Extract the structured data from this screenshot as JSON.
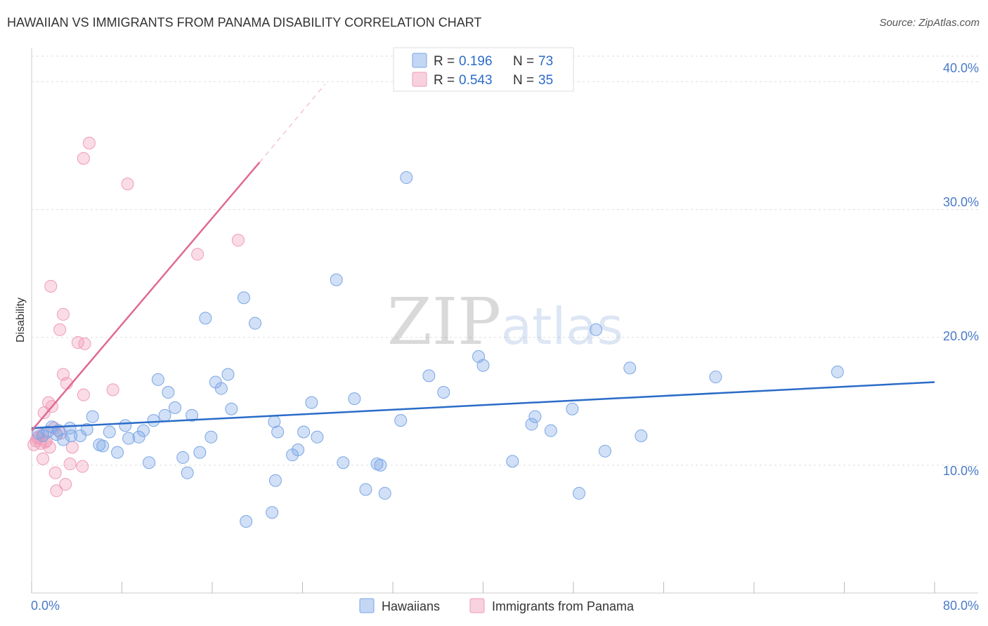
{
  "header": {
    "title": "HAWAIIAN VS IMMIGRANTS FROM PANAMA DISABILITY CORRELATION CHART",
    "source": "Source: ZipAtlas.com"
  },
  "watermark": {
    "zip": "ZIP",
    "atlas": "atlas"
  },
  "colors": {
    "hawaiians": "#7aa6e6",
    "hawaiians_line": "#2a6cc8",
    "panama": "#f09ab8",
    "panama_line": "#e06a92",
    "tick_text": "#4a7ac8",
    "grid": "#dddddd"
  },
  "legend": {
    "r_label": "R =",
    "n_label": "N =",
    "rows": [
      {
        "r": "0.196",
        "n": "73"
      },
      {
        "r": "0.543",
        "n": "35"
      }
    ]
  },
  "chart_data": {
    "type": "scatter",
    "title": "HAWAIIAN VS IMMIGRANTS FROM PANAMA DISABILITY CORRELATION CHART",
    "xlabel": "",
    "ylabel": "Disability",
    "xlim": [
      0,
      80
    ],
    "ylim": [
      0,
      42
    ],
    "x_tick_labels": [
      "0.0%",
      "80.0%"
    ],
    "y_ticks": [
      10,
      20,
      30,
      40
    ],
    "y_tick_labels": [
      "10.0%",
      "20.0%",
      "30.0%",
      "40.0%"
    ],
    "grid": true,
    "series": [
      {
        "name": "Hawaiians",
        "r": 0.196,
        "n": 73,
        "trend": {
          "x": [
            0,
            80
          ],
          "y": [
            12.9,
            16.5
          ]
        },
        "points": [
          [
            0.6,
            12.5
          ],
          [
            1.0,
            12.3
          ],
          [
            1.4,
            12.6
          ],
          [
            1.8,
            13.0
          ],
          [
            2.2,
            12.4
          ],
          [
            2.8,
            12.0
          ],
          [
            3.5,
            12.3
          ],
          [
            4.3,
            12.3
          ],
          [
            4.9,
            12.8
          ],
          [
            5.4,
            13.8
          ],
          [
            6.0,
            11.6
          ],
          [
            6.3,
            11.5
          ],
          [
            6.9,
            12.6
          ],
          [
            7.6,
            11.0
          ],
          [
            8.3,
            13.1
          ],
          [
            8.6,
            12.1
          ],
          [
            9.5,
            12.2
          ],
          [
            9.9,
            12.7
          ],
          [
            10.4,
            10.2
          ],
          [
            10.8,
            13.5
          ],
          [
            11.2,
            16.7
          ],
          [
            11.8,
            13.9
          ],
          [
            12.1,
            15.7
          ],
          [
            12.7,
            14.5
          ],
          [
            13.4,
            10.6
          ],
          [
            13.8,
            9.4
          ],
          [
            14.2,
            13.9
          ],
          [
            14.9,
            11.0
          ],
          [
            15.4,
            21.5
          ],
          [
            15.9,
            12.2
          ],
          [
            16.3,
            16.5
          ],
          [
            16.8,
            16.0
          ],
          [
            17.4,
            17.1
          ],
          [
            17.7,
            14.4
          ],
          [
            18.8,
            23.1
          ],
          [
            19.0,
            5.6
          ],
          [
            19.8,
            21.1
          ],
          [
            21.5,
            13.4
          ],
          [
            21.8,
            12.6
          ],
          [
            21.3,
            6.3
          ],
          [
            21.6,
            8.8
          ],
          [
            23.1,
            10.8
          ],
          [
            23.6,
            11.2
          ],
          [
            24.1,
            12.6
          ],
          [
            24.8,
            14.9
          ],
          [
            25.3,
            12.2
          ],
          [
            27.0,
            24.5
          ],
          [
            27.6,
            10.2
          ],
          [
            28.6,
            15.2
          ],
          [
            29.6,
            8.1
          ],
          [
            30.6,
            10.1
          ],
          [
            30.9,
            10.0
          ],
          [
            31.3,
            7.8
          ],
          [
            32.7,
            13.5
          ],
          [
            33.2,
            32.5
          ],
          [
            35.2,
            17.0
          ],
          [
            36.5,
            15.7
          ],
          [
            39.6,
            18.5
          ],
          [
            40.0,
            17.8
          ],
          [
            42.6,
            10.3
          ],
          [
            44.3,
            13.2
          ],
          [
            44.6,
            13.8
          ],
          [
            46.0,
            12.7
          ],
          [
            47.9,
            14.4
          ],
          [
            48.5,
            7.8
          ],
          [
            50.0,
            20.6
          ],
          [
            50.8,
            11.1
          ],
          [
            53.0,
            17.6
          ],
          [
            54.0,
            12.3
          ],
          [
            60.6,
            16.9
          ],
          [
            71.4,
            17.3
          ],
          [
            3.4,
            12.9
          ],
          [
            2.4,
            12.7
          ]
        ]
      },
      {
        "name": "Immigrants from Panama",
        "r": 0.543,
        "n": 35,
        "trend": {
          "x": [
            0,
            20.2
          ],
          "y": [
            12.7,
            33.7
          ]
        },
        "trend_dashed": {
          "x": [
            20.2,
            26.0
          ],
          "y": [
            33.7,
            39.8
          ]
        },
        "points": [
          [
            0.2,
            11.6
          ],
          [
            0.4,
            11.9
          ],
          [
            0.6,
            12.2
          ],
          [
            0.8,
            11.7
          ],
          [
            1.0,
            12.4
          ],
          [
            1.1,
            14.1
          ],
          [
            1.0,
            10.5
          ],
          [
            1.3,
            11.9
          ],
          [
            1.5,
            14.9
          ],
          [
            1.6,
            11.4
          ],
          [
            1.7,
            24.0
          ],
          [
            1.8,
            14.6
          ],
          [
            2.0,
            12.9
          ],
          [
            2.1,
            9.4
          ],
          [
            2.2,
            8.0
          ],
          [
            2.5,
            20.6
          ],
          [
            2.6,
            12.5
          ],
          [
            2.8,
            21.8
          ],
          [
            2.8,
            17.1
          ],
          [
            3.1,
            16.4
          ],
          [
            3.0,
            8.5
          ],
          [
            3.4,
            10.1
          ],
          [
            3.6,
            11.4
          ],
          [
            4.1,
            19.6
          ],
          [
            4.5,
            9.9
          ],
          [
            4.6,
            15.5
          ],
          [
            4.6,
            34.0
          ],
          [
            4.7,
            19.5
          ],
          [
            5.1,
            35.2
          ],
          [
            7.2,
            15.9
          ],
          [
            8.5,
            32.0
          ],
          [
            14.7,
            26.5
          ],
          [
            18.3,
            27.6
          ],
          [
            0.5,
            12.1
          ],
          [
            1.2,
            11.8
          ]
        ]
      }
    ]
  },
  "bottom_legend": {
    "items": [
      {
        "label": "Hawaiians"
      },
      {
        "label": "Immigrants from Panama"
      }
    ]
  }
}
